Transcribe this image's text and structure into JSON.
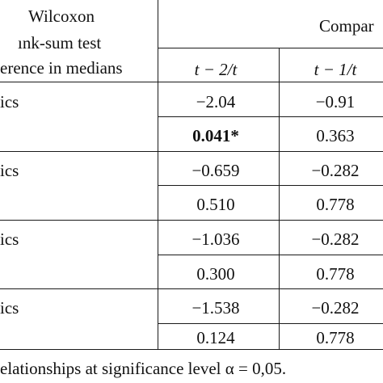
{
  "header": {
    "line1": "Wilcoxon",
    "line2": "ınk-sum test",
    "line3": "erence in medians",
    "group_label": "Compar",
    "col1": "t − 2/t",
    "col2": "t − 1/t"
  },
  "rows": [
    {
      "label": "ics",
      "c1": "−2.04",
      "c2": "−0.91"
    },
    {
      "label": "",
      "c1": "0.041*",
      "c2": "0.363"
    },
    {
      "label": "ics",
      "c1": "−0.659",
      "c2": "−0.282"
    },
    {
      "label": "",
      "c1": "0.510",
      "c2": "0.778"
    },
    {
      "label": "ics",
      "c1": "−1.036",
      "c2": "−0.282"
    },
    {
      "label": "",
      "c1": "0.300",
      "c2": "0.778"
    },
    {
      "label": "ics",
      "c1": "−1.538",
      "c2": "−0.282"
    },
    {
      "label": "",
      "c1": "0.124",
      "c2": "0.778"
    }
  ],
  "footnote": "elationships at significance level α = 0,05."
}
